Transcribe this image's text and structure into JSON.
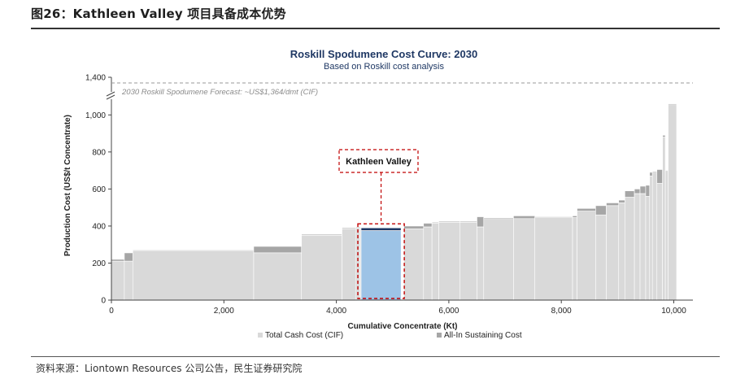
{
  "figure": {
    "title": "图26：Kathleen Valley 项目具备成本优势",
    "source": "资料来源：Liontown Resources 公司公告，民生证券研究院"
  },
  "colors": {
    "total_cash_cost": "#d9d9d9",
    "all_in_sustaining": "#a6a6a6",
    "highlight_fill": "#9dc3e6",
    "highlight_cap": "#1f3864",
    "highlight_border": "#c00000",
    "title": "#1f3864"
  },
  "chart_data": {
    "type": "bar",
    "subtype": "cost-curve (variable-width bars)",
    "title": "Roskill Spodumene Cost Curve: 2030",
    "subtitle": "Based on Roskill cost analysis",
    "xlabel": "Cumulative Concentrate (Kt)",
    "ylabel": "Production Cost (US$/t Concentrate)",
    "xlim": [
      0,
      10300
    ],
    "ylim": [
      0,
      1400
    ],
    "y_axis_break": [
      1100,
      1380
    ],
    "xticks": [
      0,
      2000,
      4000,
      6000,
      8000,
      10000
    ],
    "xtick_labels": [
      "0",
      "2,000",
      "4,000",
      "6,000",
      "8,000",
      "10,000"
    ],
    "yticks": [
      0,
      200,
      400,
      600,
      800,
      1000,
      1400
    ],
    "ytick_labels": [
      "0",
      "200",
      "400",
      "600",
      "800",
      "1,000",
      "1,400"
    ],
    "forecast_line": {
      "value": 1364,
      "label": "2030 Roskill Spodumene Forecast: ~US$1,364/dmt (CIF)"
    },
    "highlight": {
      "label": "Kathleen Valley",
      "segment_index": 8
    },
    "legend": [
      "Total Cash Cost (CIF)",
      "All-In Sustaining Cost"
    ],
    "legend_position": "bottom",
    "segments": [
      {
        "x0": 0,
        "x1": 230,
        "cash": 210,
        "aisc": 220
      },
      {
        "x0": 230,
        "x1": 380,
        "cash": 210,
        "aisc": 255
      },
      {
        "x0": 380,
        "x1": 2530,
        "cash": 265,
        "aisc": 270
      },
      {
        "x0": 2530,
        "x1": 3380,
        "cash": 255,
        "aisc": 290
      },
      {
        "x0": 3380,
        "x1": 4100,
        "cash": 350,
        "aisc": 355
      },
      {
        "x0": 4100,
        "x1": 4350,
        "cash": 385,
        "aisc": 390
      },
      {
        "x0": 4350,
        "x1": 4420,
        "cash": 390,
        "aisc": 395
      },
      {
        "x0": 4420,
        "x1": 4440,
        "cash": 385,
        "aisc": 390
      },
      {
        "x0": 4440,
        "x1": 5150,
        "cash": 375,
        "aisc": 390
      },
      {
        "x0": 5200,
        "x1": 5550,
        "cash": 385,
        "aisc": 400
      },
      {
        "x0": 5550,
        "x1": 5700,
        "cash": 395,
        "aisc": 415
      },
      {
        "x0": 5700,
        "x1": 5820,
        "cash": 415,
        "aisc": 420
      },
      {
        "x0": 5820,
        "x1": 6200,
        "cash": 420,
        "aisc": 425
      },
      {
        "x0": 6200,
        "x1": 6500,
        "cash": 420,
        "aisc": 425
      },
      {
        "x0": 6500,
        "x1": 6620,
        "cash": 395,
        "aisc": 450
      },
      {
        "x0": 6620,
        "x1": 7150,
        "cash": 440,
        "aisc": 445
      },
      {
        "x0": 7150,
        "x1": 7530,
        "cash": 440,
        "aisc": 455
      },
      {
        "x0": 7530,
        "x1": 8200,
        "cash": 445,
        "aisc": 450
      },
      {
        "x0": 8200,
        "x1": 8280,
        "cash": 445,
        "aisc": 455
      },
      {
        "x0": 8280,
        "x1": 8610,
        "cash": 480,
        "aisc": 495
      },
      {
        "x0": 8610,
        "x1": 8800,
        "cash": 460,
        "aisc": 510
      },
      {
        "x0": 8800,
        "x1": 9020,
        "cash": 510,
        "aisc": 525
      },
      {
        "x0": 9020,
        "x1": 9130,
        "cash": 525,
        "aisc": 540
      },
      {
        "x0": 9130,
        "x1": 9300,
        "cash": 555,
        "aisc": 590
      },
      {
        "x0": 9300,
        "x1": 9400,
        "cash": 575,
        "aisc": 600
      },
      {
        "x0": 9400,
        "x1": 9500,
        "cash": 575,
        "aisc": 615
      },
      {
        "x0": 9500,
        "x1": 9570,
        "cash": 560,
        "aisc": 620
      },
      {
        "x0": 9570,
        "x1": 9620,
        "cash": 670,
        "aisc": 690
      },
      {
        "x0": 9620,
        "x1": 9700,
        "cash": 690,
        "aisc": 695
      },
      {
        "x0": 9700,
        "x1": 9800,
        "cash": 630,
        "aisc": 705
      },
      {
        "x0": 9800,
        "x1": 9850,
        "cash": 880,
        "aisc": 890
      },
      {
        "x0": 9850,
        "x1": 9900,
        "cash": 695,
        "aisc": 700
      },
      {
        "x0": 9900,
        "x1": 10050,
        "cash": 1055,
        "aisc": 1060
      }
    ]
  }
}
